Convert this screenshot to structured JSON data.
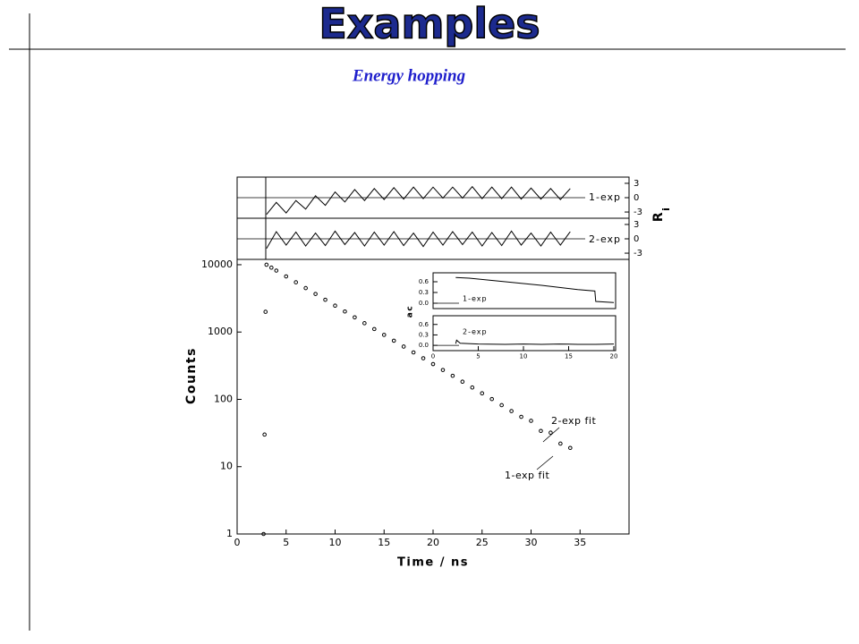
{
  "title": "Examples",
  "subtitle": "Energy hopping",
  "chart_data": [
    {
      "type": "scatter",
      "log_y": true,
      "xlabel": "Time / ns",
      "ylabel": "Counts",
      "annotations": [
        "2-exp fit",
        "1-exp fit"
      ],
      "color": "#000000",
      "xlim": [
        0,
        40
      ],
      "xticks": [
        0,
        5,
        10,
        15,
        20,
        25,
        30,
        35
      ],
      "ylim": [
        1,
        12000
      ],
      "yticks": [
        1,
        10,
        100,
        1000,
        10000
      ],
      "x": [
        2.7,
        2.8,
        2.9,
        3.0,
        3.5,
        4,
        5,
        6,
        7,
        8,
        9,
        10,
        11,
        12,
        13,
        14,
        15,
        16,
        17,
        18,
        19,
        20,
        21,
        22,
        23,
        24,
        25,
        26,
        27,
        28,
        29,
        30,
        31,
        32,
        33,
        34
      ],
      "values": [
        1,
        30,
        2000,
        10000,
        9048,
        8187,
        6703,
        5488,
        4493,
        3679,
        3012,
        2466,
        2019,
        1653,
        1353,
        1108,
        907,
        743,
        608,
        498,
        408,
        334,
        273,
        224,
        183,
        150,
        123,
        101,
        82,
        67,
        55,
        48,
        34,
        32,
        22,
        19
      ]
    },
    {
      "type": "line",
      "label": "1-exp",
      "ylabel": "R",
      "ylabel_sub": "i",
      "ytick_side": "right",
      "color": "#000000",
      "xlim": [
        0,
        40
      ],
      "ylim": [
        -4.3,
        4.3
      ],
      "yticks": [
        3,
        0,
        -3
      ],
      "x": [
        3,
        4,
        5,
        6,
        7,
        8,
        9,
        10,
        11,
        12,
        13,
        14,
        15,
        16,
        17,
        18,
        19,
        20,
        21,
        22,
        23,
        24,
        25,
        26,
        27,
        28,
        29,
        30,
        31,
        32,
        33,
        34
      ],
      "values": [
        -3.5,
        -1.0,
        -3.2,
        -0.6,
        -2.4,
        0.4,
        -1.6,
        1.2,
        -0.9,
        1.7,
        -0.6,
        1.9,
        -0.4,
        2.1,
        -0.3,
        2.2,
        -0.2,
        2.2,
        -0.1,
        2.2,
        -0.1,
        2.3,
        -0.2,
        2.2,
        -0.2,
        2.2,
        -0.3,
        2.0,
        -0.3,
        1.9,
        -0.4,
        1.9
      ]
    },
    {
      "type": "line",
      "label": "2-exp",
      "ytick_side": "right",
      "color": "#000000",
      "xlim": [
        0,
        40
      ],
      "ylim": [
        -4.3,
        4.3
      ],
      "yticks": [
        3,
        0,
        -3
      ],
      "x": [
        3,
        4,
        5,
        6,
        7,
        8,
        9,
        10,
        11,
        12,
        13,
        14,
        15,
        16,
        17,
        18,
        19,
        20,
        21,
        22,
        23,
        24,
        25,
        26,
        27,
        28,
        29,
        30,
        31,
        32,
        33,
        34
      ],
      "values": [
        -2.0,
        1.5,
        -1.3,
        1.4,
        -1.5,
        1.2,
        -1.4,
        1.6,
        -1.2,
        1.3,
        -1.5,
        1.4,
        -1.3,
        1.5,
        -1.4,
        1.2,
        -1.6,
        1.4,
        -1.3,
        1.5,
        -1.2,
        1.4,
        -1.5,
        1.3,
        -1.4,
        1.6,
        -1.3,
        1.2,
        -1.5,
        1.4,
        -1.3,
        1.5
      ]
    },
    {
      "type": "line",
      "label": "1-exp",
      "ylabel": "ac",
      "color": "#000000",
      "xlim": [
        0,
        20
      ],
      "ylim": [
        -0.15,
        0.85
      ],
      "yticks": [
        {
          "value": 0,
          "label": "0.0"
        },
        0.3,
        0.6
      ],
      "x": [
        2.5,
        4,
        6,
        8,
        10,
        12,
        14,
        16,
        17.9,
        18,
        20
      ],
      "values": [
        0.72,
        0.7,
        0.65,
        0.6,
        0.55,
        0.5,
        0.44,
        0.38,
        0.34,
        0.05,
        0.02
      ]
    },
    {
      "type": "line",
      "label": "2-exp",
      "color": "#000000",
      "xlim": [
        0,
        20
      ],
      "ylim": [
        -0.15,
        0.85
      ],
      "yticks": [
        {
          "value": 0,
          "label": "0.0"
        },
        0.3,
        0.6
      ],
      "xticks": [
        0,
        5,
        10,
        15,
        20
      ],
      "x": [
        2.5,
        2.6,
        3,
        5,
        8,
        10,
        12,
        14,
        16,
        18,
        20
      ],
      "values": [
        0.05,
        0.15,
        0.06,
        0.04,
        0.03,
        0.04,
        0.03,
        0.04,
        0.03,
        0.03,
        0.04
      ]
    }
  ]
}
